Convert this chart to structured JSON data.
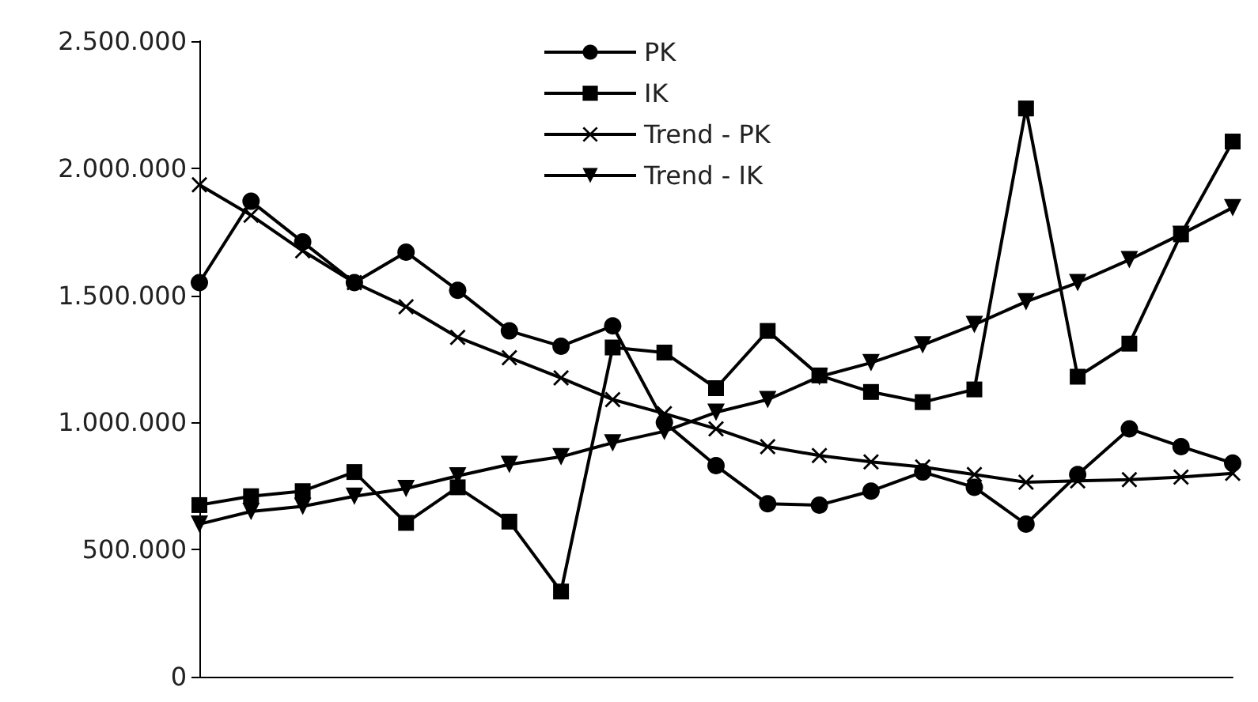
{
  "chart_data": {
    "type": "line",
    "categories": [
      null,
      null,
      null,
      null,
      null,
      null,
      null,
      null,
      null,
      null,
      null,
      null,
      null,
      null,
      null,
      null,
      null,
      null,
      null,
      null,
      null
    ],
    "series": [
      {
        "name": "PK",
        "color": "#000000",
        "marker": "circle",
        "values": [
          1550000,
          1870000,
          1710000,
          1550000,
          1670000,
          1520000,
          1360000,
          1300000,
          1380000,
          1000000,
          830000,
          680000,
          675000,
          730000,
          805000,
          745000,
          600000,
          795000,
          975000,
          905000,
          840000
        ]
      },
      {
        "name": "IK",
        "color": "#000000",
        "marker": "square",
        "values": [
          675000,
          710000,
          730000,
          805000,
          605000,
          745000,
          610000,
          335000,
          1295000,
          1275000,
          1135000,
          1360000,
          1185000,
          1120000,
          1080000,
          1130000,
          2235000,
          1180000,
          1310000,
          1740000,
          2105000
        ]
      },
      {
        "name": "Trend - PK",
        "color": "#000000",
        "marker": "cross",
        "values": [
          1935000,
          1815000,
          1675000,
          1550000,
          1455000,
          1335000,
          1255000,
          1175000,
          1090000,
          1035000,
          975000,
          905000,
          870000,
          845000,
          825000,
          795000,
          765000,
          770000,
          775000,
          785000,
          800000
        ]
      },
      {
        "name": "Trend - IK",
        "color": "#000000",
        "marker": "triangle",
        "values": [
          600000,
          650000,
          670000,
          710000,
          740000,
          790000,
          835000,
          865000,
          920000,
          965000,
          1040000,
          1090000,
          1180000,
          1235000,
          1305000,
          1385000,
          1475000,
          1550000,
          1640000,
          1740000,
          1845000
        ]
      }
    ],
    "ylim": [
      0,
      2500000
    ],
    "yticks": [
      {
        "value": 0,
        "label": "0"
      },
      {
        "value": 500000,
        "label": "500.000"
      },
      {
        "value": 1000000,
        "label": "1.000.000"
      },
      {
        "value": 1500000,
        "label": "1.500.000"
      },
      {
        "value": 2000000,
        "label": "2.000.000"
      },
      {
        "value": 2500000,
        "label": "2.500.000"
      }
    ],
    "grid": false,
    "legend": "top",
    "line_style": "solid"
  }
}
